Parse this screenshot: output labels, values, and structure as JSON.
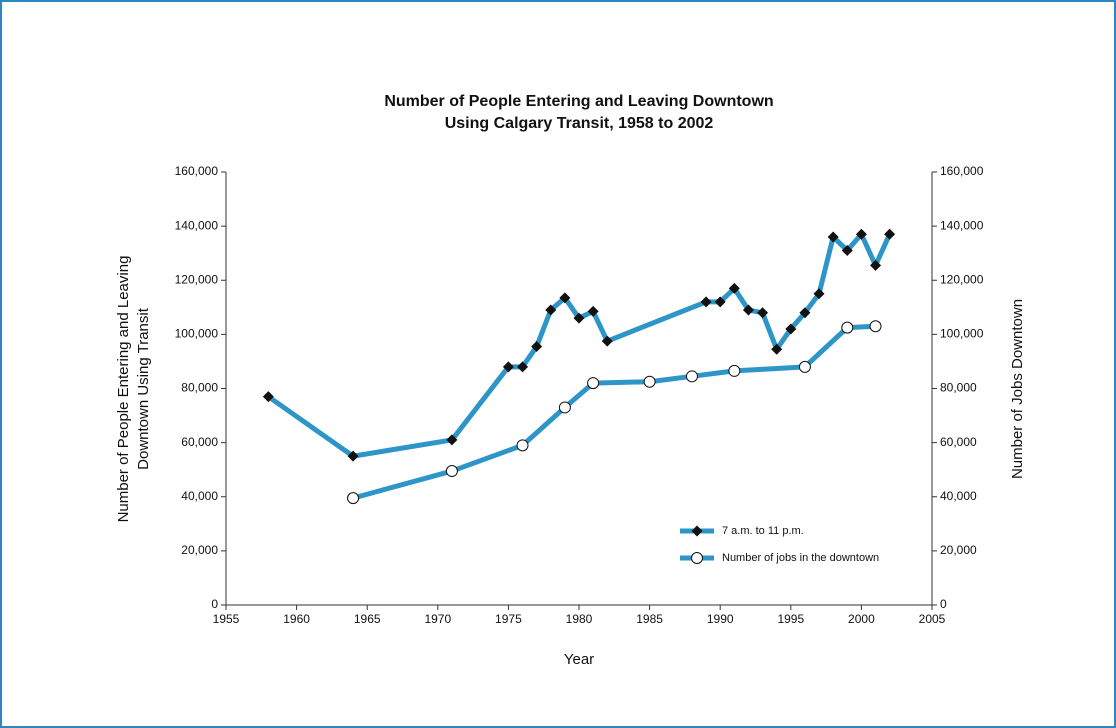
{
  "chart_data": {
    "type": "line",
    "title": [
      "Number of People Entering and Leaving Downtown",
      "Using Calgary Transit, 1958 to 2002"
    ],
    "xlabel": "Year",
    "ylabel": [
      "Number of People Entering and Leaving",
      "Downtown Using Transit"
    ],
    "y2label": "Number of Jobs Downtown",
    "xlim": [
      1955,
      2005
    ],
    "xticks": [
      1955,
      1960,
      1965,
      1970,
      1975,
      1980,
      1985,
      1990,
      1995,
      2000,
      2005
    ],
    "ylim": [
      0,
      160000
    ],
    "yticks": [
      0,
      {
        "value": 20000,
        "label": "20,000"
      },
      {
        "value": 40000,
        "label": "40,000"
      },
      {
        "value": 60000,
        "label": "60,000"
      },
      {
        "value": 80000,
        "label": "80,000"
      },
      {
        "value": 100000,
        "label": "100,000"
      },
      {
        "value": 120000,
        "label": "120,000"
      },
      {
        "value": 140000,
        "label": "140,000"
      },
      {
        "value": 160000,
        "label": "160,000"
      }
    ],
    "y2lim": [
      0,
      160000
    ],
    "y2ticks": [
      0,
      {
        "value": 20000,
        "label": "20,000"
      },
      {
        "value": 40000,
        "label": "40,000"
      },
      {
        "value": 60000,
        "label": "60,000"
      },
      {
        "value": 80000,
        "label": "80,000"
      },
      {
        "value": 100000,
        "label": "100,000"
      },
      {
        "value": 120000,
        "label": "120,000"
      },
      {
        "value": 140000,
        "label": "140,000"
      },
      {
        "value": 160000,
        "label": "160,000"
      }
    ],
    "legend": "lower right",
    "series": [
      {
        "name": "7 a.m. to 11 p.m.",
        "color": "#2e95c9",
        "marker": "diamond",
        "x": [
          1958,
          1964,
          1971,
          1975,
          1976,
          1977,
          1978,
          1979,
          1980,
          1981,
          1982,
          1989,
          1990,
          1991,
          1992,
          1993,
          1994,
          1995,
          1996,
          1997,
          1998,
          1999,
          2000,
          2001,
          2002
        ],
        "values": [
          77000,
          55000,
          61000,
          88000,
          88000,
          95500,
          109000,
          113500,
          106000,
          108500,
          97500,
          112000,
          112000,
          117000,
          109000,
          108000,
          94500,
          102000,
          108000,
          115000,
          136000,
          131000,
          137000,
          125500,
          137000
        ]
      },
      {
        "name": "Number of jobs in the downtown",
        "color": "#2e95c9",
        "marker": "circle",
        "axis": "y2",
        "x": [
          1964,
          1971,
          1976,
          1979,
          1981,
          1985,
          1988,
          1991,
          1996,
          1999,
          2001
        ],
        "values": [
          39500,
          49500,
          59000,
          73000,
          82000,
          82500,
          84500,
          86500,
          88000,
          102500,
          103000
        ]
      }
    ]
  }
}
